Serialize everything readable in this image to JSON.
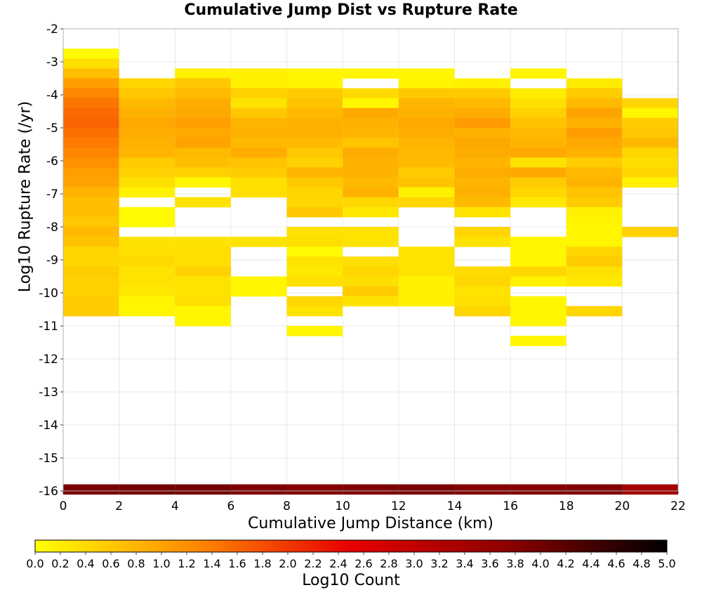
{
  "chart_data": {
    "type": "heatmap",
    "title": "Cumulative Jump Dist vs Rupture Rate",
    "xlabel": "Cumulative Jump Distance (km)",
    "ylabel": "Log10 Rupture Rate (/yr)",
    "colorbar_label": "Log10 Count",
    "xlim": [
      0,
      22
    ],
    "ylim": [
      -16,
      -2
    ],
    "x_ticks": [
      0,
      2,
      4,
      6,
      8,
      10,
      12,
      14,
      16,
      18,
      20,
      22
    ],
    "y_ticks": [
      -2,
      -3,
      -4,
      -5,
      -6,
      -7,
      -8,
      -9,
      -10,
      -11,
      -12,
      -13,
      -14,
      -15,
      -16
    ],
    "colorbar_range": [
      0,
      5
    ],
    "colorbar_ticks": [
      "0.0",
      "0.2",
      "0.4",
      "0.6",
      "0.8",
      "1.0",
      "1.2",
      "1.4",
      "1.6",
      "1.8",
      "2.0",
      "2.2",
      "2.4",
      "2.6",
      "2.8",
      "3.0",
      "3.2",
      "3.4",
      "3.6",
      "3.8",
      "4.0",
      "4.2",
      "4.4",
      "4.6",
      "4.8",
      "5.0"
    ],
    "colormap": [
      "#ffff00",
      "#ff8c00",
      "#e60000",
      "#8b0000",
      "#000000"
    ],
    "grid": true,
    "x_bin_width": 2,
    "y_bin_height": 0.3,
    "cells": [
      [
        0,
        -2.75,
        0.05
      ],
      [
        0,
        -3.05,
        0.35
      ],
      [
        0,
        -3.35,
        0.7
      ],
      [
        0,
        -3.65,
        1.05
      ],
      [
        0,
        -3.95,
        1.3
      ],
      [
        0,
        -4.25,
        1.45
      ],
      [
        0,
        -4.55,
        1.55
      ],
      [
        0,
        -4.85,
        1.6
      ],
      [
        0,
        -5.15,
        1.5
      ],
      [
        0,
        -5.45,
        1.4
      ],
      [
        0,
        -5.75,
        1.3
      ],
      [
        0,
        -6.05,
        1.2
      ],
      [
        0,
        -6.35,
        1.05
      ],
      [
        0,
        -6.65,
        1.0
      ],
      [
        0,
        -6.95,
        0.8
      ],
      [
        0,
        -7.25,
        0.7
      ],
      [
        0,
        -7.55,
        0.7
      ],
      [
        0,
        -7.85,
        0.6
      ],
      [
        0,
        -8.15,
        0.75
      ],
      [
        0,
        -8.45,
        0.65
      ],
      [
        0,
        -8.75,
        0.45
      ],
      [
        0,
        -9.05,
        0.45
      ],
      [
        0,
        -9.35,
        0.55
      ],
      [
        0,
        -9.65,
        0.5
      ],
      [
        0,
        -9.95,
        0.5
      ],
      [
        0,
        -10.25,
        0.55
      ],
      [
        0,
        -10.55,
        0.55
      ],
      [
        2,
        -3.65,
        0.45
      ],
      [
        2,
        -3.95,
        0.6
      ],
      [
        2,
        -4.25,
        0.75
      ],
      [
        2,
        -4.55,
        0.85
      ],
      [
        2,
        -4.85,
        0.95
      ],
      [
        2,
        -5.15,
        0.9
      ],
      [
        2,
        -5.45,
        0.85
      ],
      [
        2,
        -5.75,
        0.8
      ],
      [
        2,
        -6.05,
        0.55
      ],
      [
        2,
        -6.35,
        0.5
      ],
      [
        2,
        -6.65,
        0.35
      ],
      [
        2,
        -6.95,
        0.15
      ],
      [
        2,
        -7.55,
        0.05
      ],
      [
        2,
        -7.85,
        0.05
      ],
      [
        2,
        -8.45,
        0.3
      ],
      [
        2,
        -8.75,
        0.35
      ],
      [
        2,
        -9.05,
        0.4
      ],
      [
        2,
        -9.35,
        0.3
      ],
      [
        2,
        -9.65,
        0.3
      ],
      [
        2,
        -9.95,
        0.25
      ],
      [
        2,
        -10.25,
        0.1
      ],
      [
        2,
        -10.55,
        0.1
      ],
      [
        4,
        -3.35,
        0.15
      ],
      [
        4,
        -3.65,
        0.6
      ],
      [
        4,
        -3.95,
        0.75
      ],
      [
        4,
        -4.25,
        0.9
      ],
      [
        4,
        -4.55,
        0.95
      ],
      [
        4,
        -4.85,
        1.05
      ],
      [
        4,
        -5.15,
        0.95
      ],
      [
        4,
        -5.45,
        1.0
      ],
      [
        4,
        -5.75,
        0.75
      ],
      [
        4,
        -6.05,
        0.7
      ],
      [
        4,
        -6.35,
        0.5
      ],
      [
        4,
        -6.65,
        0.1
      ],
      [
        4,
        -7.25,
        0.3
      ],
      [
        4,
        -8.45,
        0.3
      ],
      [
        4,
        -8.75,
        0.35
      ],
      [
        4,
        -9.05,
        0.35
      ],
      [
        4,
        -9.35,
        0.5
      ],
      [
        4,
        -9.65,
        0.3
      ],
      [
        4,
        -9.95,
        0.3
      ],
      [
        4,
        -10.25,
        0.35
      ],
      [
        4,
        -10.55,
        0.1
      ],
      [
        4,
        -10.85,
        0.1
      ],
      [
        6,
        -3.35,
        0.15
      ],
      [
        6,
        -3.65,
        0.15
      ],
      [
        6,
        -3.95,
        0.5
      ],
      [
        6,
        -4.25,
        0.3
      ],
      [
        6,
        -4.55,
        0.6
      ],
      [
        6,
        -4.85,
        0.8
      ],
      [
        6,
        -5.15,
        0.85
      ],
      [
        6,
        -5.45,
        0.75
      ],
      [
        6,
        -5.75,
        0.9
      ],
      [
        6,
        -6.05,
        0.65
      ],
      [
        6,
        -6.35,
        0.55
      ],
      [
        6,
        -6.65,
        0.35
      ],
      [
        6,
        -6.95,
        0.35
      ],
      [
        6,
        -8.45,
        0.3
      ],
      [
        6,
        -9.65,
        0.1
      ],
      [
        6,
        -9.95,
        0.1
      ],
      [
        8,
        -3.35,
        0.1
      ],
      [
        8,
        -3.65,
        0.1
      ],
      [
        8,
        -3.95,
        0.55
      ],
      [
        8,
        -4.25,
        0.65
      ],
      [
        8,
        -4.55,
        0.75
      ],
      [
        8,
        -4.85,
        0.85
      ],
      [
        8,
        -5.15,
        0.85
      ],
      [
        8,
        -5.45,
        0.75
      ],
      [
        8,
        -5.75,
        0.6
      ],
      [
        8,
        -6.05,
        0.5
      ],
      [
        8,
        -6.35,
        0.8
      ],
      [
        8,
        -6.65,
        0.6
      ],
      [
        8,
        -6.95,
        0.45
      ],
      [
        8,
        -7.25,
        0.45
      ],
      [
        8,
        -7.55,
        0.6
      ],
      [
        8,
        -8.15,
        0.3
      ],
      [
        8,
        -8.45,
        0.35
      ],
      [
        8,
        -8.75,
        0.05
      ],
      [
        8,
        -9.05,
        0.3
      ],
      [
        8,
        -9.35,
        0.25
      ],
      [
        8,
        -9.65,
        0.35
      ],
      [
        8,
        -10.25,
        0.45
      ],
      [
        8,
        -10.55,
        0.3
      ],
      [
        8,
        -11.15,
        0.1
      ],
      [
        10,
        -3.35,
        0.1
      ],
      [
        10,
        -3.95,
        0.4
      ],
      [
        10,
        -4.25,
        0.1
      ],
      [
        10,
        -4.55,
        0.95
      ],
      [
        10,
        -4.85,
        0.85
      ],
      [
        10,
        -5.15,
        0.8
      ],
      [
        10,
        -5.45,
        0.65
      ],
      [
        10,
        -5.75,
        0.9
      ],
      [
        10,
        -6.05,
        0.85
      ],
      [
        10,
        -6.35,
        0.85
      ],
      [
        10,
        -6.65,
        0.75
      ],
      [
        10,
        -6.95,
        0.85
      ],
      [
        10,
        -7.25,
        0.45
      ],
      [
        10,
        -7.55,
        0.25
      ],
      [
        10,
        -8.15,
        0.3
      ],
      [
        10,
        -8.45,
        0.3
      ],
      [
        10,
        -9.05,
        0.35
      ],
      [
        10,
        -9.35,
        0.45
      ],
      [
        10,
        -9.65,
        0.35
      ],
      [
        10,
        -9.95,
        0.55
      ],
      [
        10,
        -10.25,
        0.3
      ],
      [
        12,
        -3.35,
        0.1
      ],
      [
        12,
        -3.65,
        0.1
      ],
      [
        12,
        -3.95,
        0.6
      ],
      [
        12,
        -4.25,
        0.8
      ],
      [
        12,
        -4.55,
        0.85
      ],
      [
        12,
        -4.85,
        0.95
      ],
      [
        12,
        -5.15,
        0.9
      ],
      [
        12,
        -5.45,
        0.8
      ],
      [
        12,
        -5.75,
        0.75
      ],
      [
        12,
        -6.05,
        0.75
      ],
      [
        12,
        -6.35,
        0.55
      ],
      [
        12,
        -6.65,
        0.65
      ],
      [
        12,
        -6.95,
        0.15
      ],
      [
        12,
        -7.25,
        0.45
      ],
      [
        12,
        -8.75,
        0.3
      ],
      [
        12,
        -9.05,
        0.3
      ],
      [
        12,
        -9.35,
        0.3
      ],
      [
        12,
        -9.65,
        0.15
      ],
      [
        12,
        -9.95,
        0.15
      ],
      [
        12,
        -10.25,
        0.15
      ],
      [
        14,
        -3.65,
        0.15
      ],
      [
        14,
        -3.95,
        0.55
      ],
      [
        14,
        -4.25,
        0.75
      ],
      [
        14,
        -4.55,
        0.9
      ],
      [
        14,
        -4.85,
        1.1
      ],
      [
        14,
        -5.15,
        0.85
      ],
      [
        14,
        -5.45,
        0.95
      ],
      [
        14,
        -5.75,
        0.9
      ],
      [
        14,
        -6.05,
        0.8
      ],
      [
        14,
        -6.35,
        0.9
      ],
      [
        14,
        -6.65,
        0.8
      ],
      [
        14,
        -6.95,
        0.85
      ],
      [
        14,
        -7.25,
        0.75
      ],
      [
        14,
        -7.55,
        0.3
      ],
      [
        14,
        -8.15,
        0.45
      ],
      [
        14,
        -8.45,
        0.3
      ],
      [
        14,
        -9.35,
        0.4
      ],
      [
        14,
        -9.65,
        0.45
      ],
      [
        14,
        -9.95,
        0.3
      ],
      [
        14,
        -10.25,
        0.35
      ],
      [
        14,
        -10.55,
        0.45
      ],
      [
        16,
        -3.35,
        0.1
      ],
      [
        16,
        -3.95,
        0.2
      ],
      [
        16,
        -4.25,
        0.35
      ],
      [
        16,
        -4.55,
        0.5
      ],
      [
        16,
        -4.85,
        0.65
      ],
      [
        16,
        -5.15,
        0.75
      ],
      [
        16,
        -5.45,
        0.8
      ],
      [
        16,
        -5.75,
        0.95
      ],
      [
        16,
        -6.05,
        0.3
      ],
      [
        16,
        -6.35,
        0.95
      ],
      [
        16,
        -6.65,
        0.55
      ],
      [
        16,
        -6.95,
        0.45
      ],
      [
        16,
        -7.25,
        0.25
      ],
      [
        16,
        -8.45,
        0.1
      ],
      [
        16,
        -8.75,
        0.1
      ],
      [
        16,
        -9.05,
        0.1
      ],
      [
        16,
        -9.35,
        0.45
      ],
      [
        16,
        -9.65,
        0.15
      ],
      [
        16,
        -10.25,
        0.1
      ],
      [
        16,
        -10.55,
        0.1
      ],
      [
        16,
        -10.85,
        0.1
      ],
      [
        16,
        -11.45,
        0.1
      ],
      [
        18,
        -3.65,
        0.2
      ],
      [
        18,
        -3.95,
        0.55
      ],
      [
        18,
        -4.25,
        0.75
      ],
      [
        18,
        -4.55,
        1.0
      ],
      [
        18,
        -4.85,
        0.85
      ],
      [
        18,
        -5.15,
        1.05
      ],
      [
        18,
        -5.45,
        0.95
      ],
      [
        18,
        -5.75,
        0.85
      ],
      [
        18,
        -6.05,
        0.55
      ],
      [
        18,
        -6.35,
        0.75
      ],
      [
        18,
        -6.65,
        0.8
      ],
      [
        18,
        -6.95,
        0.65
      ],
      [
        18,
        -7.25,
        0.55
      ],
      [
        18,
        -7.55,
        0.15
      ],
      [
        18,
        -7.85,
        0.1
      ],
      [
        18,
        -8.15,
        0.1
      ],
      [
        18,
        -8.45,
        0.1
      ],
      [
        18,
        -8.75,
        0.45
      ],
      [
        18,
        -9.05,
        0.55
      ],
      [
        18,
        -9.35,
        0.3
      ],
      [
        18,
        -9.65,
        0.25
      ],
      [
        18,
        -10.55,
        0.45
      ],
      [
        20,
        -4.25,
        0.45
      ],
      [
        20,
        -4.55,
        0.1
      ],
      [
        20,
        -4.85,
        0.55
      ],
      [
        20,
        -5.15,
        0.6
      ],
      [
        20,
        -5.45,
        0.75
      ],
      [
        20,
        -5.75,
        0.45
      ],
      [
        20,
        -6.05,
        0.35
      ],
      [
        20,
        -6.35,
        0.45
      ],
      [
        20,
        -6.65,
        0.15
      ],
      [
        20,
        -8.15,
        0.5
      ],
      [
        0,
        -15.95,
        3.9
      ],
      [
        2,
        -15.95,
        3.95
      ],
      [
        4,
        -15.95,
        3.95
      ],
      [
        6,
        -15.95,
        3.85
      ],
      [
        8,
        -15.95,
        3.8
      ],
      [
        10,
        -15.95,
        3.85
      ],
      [
        12,
        -15.95,
        3.9
      ],
      [
        14,
        -15.95,
        3.8
      ],
      [
        16,
        -15.95,
        3.8
      ],
      [
        18,
        -15.95,
        3.85
      ],
      [
        20,
        -15.95,
        3.4
      ]
    ]
  }
}
